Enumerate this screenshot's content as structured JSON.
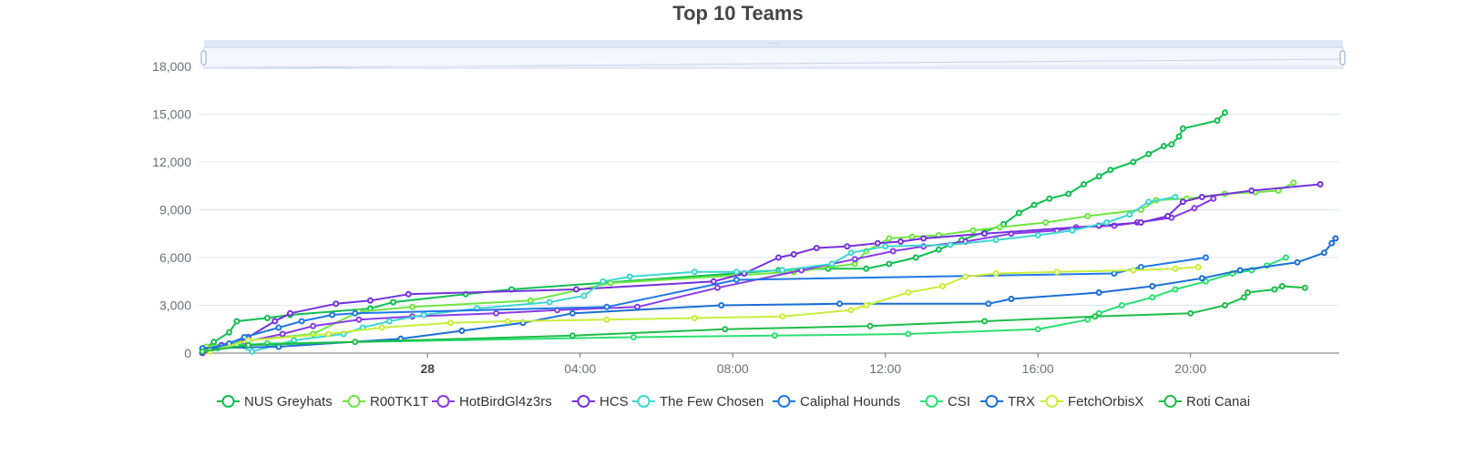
{
  "chart_data": {
    "type": "line",
    "title": "Top 10 Teams",
    "xlabel": "",
    "ylabel": "",
    "x_unit": "hours since day 27 00:00",
    "xlim": [
      18.0,
      47.9
    ],
    "ylim": [
      0,
      18000
    ],
    "y_ticks": [
      "0",
      "3,000",
      "6,000",
      "9,000",
      "12,000",
      "15,000",
      "18,000"
    ],
    "x_ticks": [
      {
        "x": 24,
        "label": "28",
        "bold": true
      },
      {
        "x": 28,
        "label": "04:00",
        "bold": false
      },
      {
        "x": 32,
        "label": "08:00",
        "bold": false
      },
      {
        "x": 36,
        "label": "12:00",
        "bold": false
      },
      {
        "x": 40,
        "label": "16:00",
        "bold": false
      },
      {
        "x": 44,
        "label": "20:00",
        "bold": false
      }
    ],
    "grid": true,
    "legend_position": "bottom",
    "has_zoom_slider": true,
    "series": [
      {
        "name": "NUS Greyhats",
        "color": "#0fbf4f",
        "points": [
          [
            18.1,
            200
          ],
          [
            18.4,
            700
          ],
          [
            18.8,
            1300
          ],
          [
            19.0,
            2000
          ],
          [
            19.8,
            2200
          ],
          [
            20.4,
            2400
          ],
          [
            22.5,
            2800
          ],
          [
            23.1,
            3200
          ],
          [
            25.0,
            3700
          ],
          [
            26.2,
            4000
          ],
          [
            33.2,
            5200
          ],
          [
            34.5,
            5300
          ],
          [
            35.5,
            5300
          ],
          [
            36.1,
            5600
          ],
          [
            36.8,
            6000
          ],
          [
            37.4,
            6500
          ],
          [
            38.0,
            7100
          ],
          [
            38.6,
            7600
          ],
          [
            39.1,
            8100
          ],
          [
            39.5,
            8800
          ],
          [
            39.9,
            9300
          ],
          [
            40.3,
            9700
          ],
          [
            40.8,
            10000
          ],
          [
            41.2,
            10600
          ],
          [
            41.6,
            11100
          ],
          [
            41.9,
            11500
          ],
          [
            42.5,
            12000
          ],
          [
            42.9,
            12500
          ],
          [
            43.3,
            13000
          ],
          [
            43.5,
            13100
          ],
          [
            43.7,
            13600
          ],
          [
            43.8,
            14100
          ],
          [
            44.7,
            14600
          ],
          [
            44.9,
            15100
          ]
        ]
      },
      {
        "name": "R00TK1T",
        "color": "#6ee640",
        "points": [
          [
            18.2,
            400
          ],
          [
            19.3,
            800
          ],
          [
            21.0,
            1200
          ],
          [
            22.2,
            2600
          ],
          [
            23.6,
            2900
          ],
          [
            26.7,
            3300
          ],
          [
            28.8,
            4400
          ],
          [
            33.6,
            5100
          ],
          [
            35.2,
            5600
          ],
          [
            35.5,
            6400
          ],
          [
            36.1,
            7200
          ],
          [
            36.7,
            7300
          ],
          [
            37.4,
            7400
          ],
          [
            38.3,
            7700
          ],
          [
            39.0,
            7900
          ],
          [
            40.2,
            8200
          ],
          [
            41.3,
            8600
          ],
          [
            42.7,
            9000
          ],
          [
            43.1,
            9600
          ],
          [
            43.9,
            9700
          ],
          [
            44.9,
            10000
          ],
          [
            45.7,
            10100
          ],
          [
            46.3,
            10200
          ],
          [
            46.7,
            10700
          ]
        ]
      },
      {
        "name": "HotBirdGl4z3rs",
        "color": "#8a3be8",
        "points": [
          [
            18.2,
            200
          ],
          [
            19.2,
            700
          ],
          [
            20.2,
            1200
          ],
          [
            21.0,
            1700
          ],
          [
            22.2,
            2100
          ],
          [
            23.6,
            2300
          ],
          [
            25.8,
            2500
          ],
          [
            27.4,
            2700
          ],
          [
            29.5,
            2900
          ],
          [
            31.6,
            4100
          ],
          [
            33.8,
            5200
          ],
          [
            35.2,
            5900
          ],
          [
            36.2,
            6400
          ],
          [
            37.0,
            6700
          ],
          [
            38.1,
            7000
          ],
          [
            39.3,
            7500
          ],
          [
            40.5,
            7700
          ],
          [
            41.0,
            7900
          ],
          [
            42.0,
            8000
          ],
          [
            42.6,
            8200
          ],
          [
            43.5,
            8500
          ],
          [
            44.1,
            9100
          ],
          [
            44.6,
            9700
          ]
        ]
      },
      {
        "name": "HCS",
        "color": "#7530e0",
        "points": [
          [
            18.1,
            0
          ],
          [
            18.6,
            500
          ],
          [
            19.3,
            1000
          ],
          [
            20.0,
            2000
          ],
          [
            20.4,
            2500
          ],
          [
            21.6,
            3100
          ],
          [
            22.5,
            3300
          ],
          [
            23.5,
            3700
          ],
          [
            27.9,
            4000
          ],
          [
            31.5,
            4500
          ],
          [
            32.3,
            5000
          ],
          [
            33.2,
            6000
          ],
          [
            33.6,
            6200
          ],
          [
            34.2,
            6600
          ],
          [
            35.0,
            6700
          ],
          [
            35.8,
            6900
          ],
          [
            36.4,
            7000
          ],
          [
            37.0,
            7200
          ],
          [
            38.6,
            7500
          ],
          [
            41.6,
            8000
          ],
          [
            42.7,
            8200
          ],
          [
            43.4,
            8600
          ],
          [
            43.8,
            9500
          ],
          [
            44.3,
            9800
          ],
          [
            45.6,
            10200
          ],
          [
            47.4,
            10600
          ]
        ]
      },
      {
        "name": "The Few Chosen",
        "color": "#3dd6cf",
        "points": [
          [
            18.5,
            300
          ],
          [
            19.0,
            500
          ],
          [
            19.4,
            100
          ],
          [
            20.5,
            800
          ],
          [
            21.8,
            1200
          ],
          [
            22.3,
            1600
          ],
          [
            23.0,
            2000
          ],
          [
            23.9,
            2400
          ],
          [
            25.3,
            2800
          ],
          [
            27.2,
            3200
          ],
          [
            28.1,
            3600
          ],
          [
            28.6,
            4500
          ],
          [
            29.3,
            4800
          ],
          [
            31.0,
            5100
          ],
          [
            32.1,
            5100
          ],
          [
            33.3,
            5200
          ],
          [
            34.6,
            5600
          ],
          [
            35.1,
            6300
          ],
          [
            36.0,
            6700
          ],
          [
            37.7,
            6800
          ],
          [
            38.9,
            7100
          ],
          [
            40.0,
            7400
          ],
          [
            40.9,
            7700
          ],
          [
            41.8,
            8200
          ],
          [
            42.4,
            8700
          ],
          [
            42.9,
            9500
          ],
          [
            43.6,
            9800
          ]
        ]
      },
      {
        "name": "Caliphal Hounds",
        "color": "#1f77e8",
        "points": [
          [
            18.1,
            200
          ],
          [
            18.8,
            600
          ],
          [
            19.2,
            1000
          ],
          [
            20.1,
            1600
          ],
          [
            20.7,
            2000
          ],
          [
            21.5,
            2400
          ],
          [
            22.1,
            2500
          ],
          [
            28.7,
            2900
          ],
          [
            32.1,
            4600
          ],
          [
            42.0,
            5000
          ],
          [
            42.7,
            5400
          ],
          [
            44.4,
            6000
          ]
        ]
      },
      {
        "name": "CSI",
        "color": "#2ae070",
        "points": [
          [
            18.1,
            200
          ],
          [
            19.0,
            500
          ],
          [
            19.8,
            600
          ],
          [
            29.4,
            1000
          ],
          [
            33.1,
            1100
          ],
          [
            36.6,
            1200
          ],
          [
            40.0,
            1500
          ],
          [
            41.3,
            2100
          ],
          [
            41.6,
            2500
          ],
          [
            42.2,
            3000
          ],
          [
            43.0,
            3500
          ],
          [
            43.6,
            4000
          ],
          [
            44.4,
            4500
          ],
          [
            45.1,
            5000
          ],
          [
            45.6,
            5200
          ],
          [
            46.0,
            5500
          ],
          [
            46.5,
            6000
          ]
        ]
      },
      {
        "name": "TRX",
        "color": "#1a6fd6",
        "points": [
          [
            18.1,
            300
          ],
          [
            20.1,
            400
          ],
          [
            23.3,
            900
          ],
          [
            24.9,
            1400
          ],
          [
            26.5,
            1900
          ],
          [
            27.8,
            2500
          ],
          [
            31.7,
            3000
          ],
          [
            34.8,
            3100
          ],
          [
            38.7,
            3100
          ],
          [
            39.3,
            3400
          ],
          [
            41.6,
            3800
          ],
          [
            43.0,
            4200
          ],
          [
            44.3,
            4700
          ],
          [
            45.3,
            5200
          ],
          [
            46.8,
            5700
          ],
          [
            47.5,
            6300
          ],
          [
            47.7,
            6900
          ],
          [
            47.8,
            7200
          ]
        ]
      },
      {
        "name": "FetchOrbisX",
        "color": "#c7ef3a",
        "points": [
          [
            18.3,
            100
          ],
          [
            19.3,
            800
          ],
          [
            21.4,
            1200
          ],
          [
            22.8,
            1600
          ],
          [
            24.6,
            1900
          ],
          [
            26.1,
            2000
          ],
          [
            28.7,
            2100
          ],
          [
            31.0,
            2200
          ],
          [
            33.3,
            2300
          ],
          [
            35.1,
            2700
          ],
          [
            35.5,
            3000
          ],
          [
            36.6,
            3800
          ],
          [
            37.5,
            4200
          ],
          [
            38.1,
            4800
          ],
          [
            38.9,
            5000
          ],
          [
            40.5,
            5100
          ],
          [
            42.5,
            5200
          ],
          [
            43.6,
            5300
          ],
          [
            44.2,
            5400
          ]
        ]
      },
      {
        "name": "Roti Canai",
        "color": "#1ebd47",
        "points": [
          [
            18.1,
            100
          ],
          [
            19.3,
            500
          ],
          [
            22.1,
            700
          ],
          [
            27.8,
            1100
          ],
          [
            31.8,
            1500
          ],
          [
            35.6,
            1700
          ],
          [
            38.6,
            2000
          ],
          [
            41.5,
            2300
          ],
          [
            44.0,
            2500
          ],
          [
            44.9,
            3000
          ],
          [
            45.4,
            3500
          ],
          [
            45.5,
            3800
          ],
          [
            46.2,
            4000
          ],
          [
            46.4,
            4200
          ],
          [
            47.0,
            4100
          ]
        ]
      }
    ]
  }
}
